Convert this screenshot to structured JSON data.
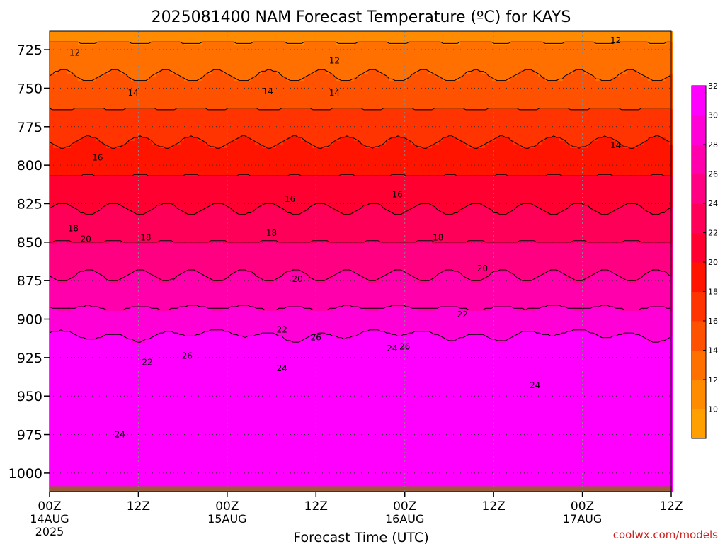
{
  "chart_data": {
    "type": "heatmap",
    "title": "2025081400 NAM Forecast Temperature (ºC) for KAYS",
    "xlabel": "Forecast Time (UTC)",
    "ylabel": "",
    "credit": "coolwx.com/models",
    "y_axis": {
      "scale": "pressure (hPa), inverted",
      "range": [
        1012,
        713
      ],
      "ticks": [
        725,
        750,
        775,
        800,
        825,
        850,
        875,
        900,
        925,
        950,
        975,
        1000
      ],
      "tick_labels": [
        "725",
        "750",
        "775",
        "800",
        "825",
        "850",
        "875",
        "900",
        "925",
        "950",
        "975",
        "1000"
      ]
    },
    "x_axis": {
      "range_hours": [
        0,
        84
      ],
      "ticks_hours": [
        0,
        12,
        24,
        36,
        48,
        60,
        72,
        84
      ],
      "tick_labels": [
        "00Z",
        "12Z",
        "00Z",
        "12Z",
        "00Z",
        "12Z",
        "00Z",
        "12Z"
      ],
      "date_labels": [
        {
          "hour": 0,
          "text": "14AUG"
        },
        {
          "hour": 24,
          "text": "15AUG"
        },
        {
          "hour": 48,
          "text": "16AUG"
        },
        {
          "hour": 72,
          "text": "17AUG"
        }
      ],
      "year_label": "2025"
    },
    "grid": "dotted",
    "ground_color": "#9b5a3c",
    "colorbar": {
      "placement": "right",
      "levels": [
        8,
        10,
        12,
        14,
        16,
        18,
        20,
        22,
        24,
        26,
        28,
        30,
        32,
        34
      ],
      "labels": [
        "10",
        "12",
        "14",
        "16",
        "18",
        "20",
        "22",
        "24",
        "26",
        "28",
        "30",
        "32"
      ],
      "colors": [
        "#ffa000",
        "#ff8c00",
        "#ff7000",
        "#ff5200",
        "#ff3400",
        "#ff1400",
        "#ff0030",
        "#ff0058",
        "#ff0082",
        "#ff00ac",
        "#ff00d6",
        "#ff00ff"
      ]
    },
    "contour_labels": [
      {
        "text": "12",
        "hour": 3.4,
        "p": 727
      },
      {
        "text": "12",
        "hour": 38.5,
        "p": 732
      },
      {
        "text": "12",
        "hour": 76.5,
        "p": 719
      },
      {
        "text": "14",
        "hour": 11.3,
        "p": 753
      },
      {
        "text": "14",
        "hour": 29.5,
        "p": 752
      },
      {
        "text": "14",
        "hour": 38.5,
        "p": 753
      },
      {
        "text": "14",
        "hour": 76.5,
        "p": 787
      },
      {
        "text": "16",
        "hour": 6.5,
        "p": 795
      },
      {
        "text": "16",
        "hour": 32.5,
        "p": 822
      },
      {
        "text": "16",
        "hour": 47.0,
        "p": 819
      },
      {
        "text": "18",
        "hour": 3.2,
        "p": 841
      },
      {
        "text": "18",
        "hour": 13.0,
        "p": 847
      },
      {
        "text": "18",
        "hour": 30.0,
        "p": 844
      },
      {
        "text": "18",
        "hour": 52.5,
        "p": 847
      },
      {
        "text": "20",
        "hour": 4.9,
        "p": 848
      },
      {
        "text": "20",
        "hour": 33.5,
        "p": 874
      },
      {
        "text": "20",
        "hour": 58.5,
        "p": 867
      },
      {
        "text": "22",
        "hour": 13.2,
        "p": 928
      },
      {
        "text": "22",
        "hour": 31.4,
        "p": 907
      },
      {
        "text": "22",
        "hour": 55.8,
        "p": 897
      },
      {
        "text": "24",
        "hour": 9.5,
        "p": 975
      },
      {
        "text": "24",
        "hour": 31.4,
        "p": 932
      },
      {
        "text": "24",
        "hour": 46.3,
        "p": 919
      },
      {
        "text": "24",
        "hour": 65.6,
        "p": 943
      },
      {
        "text": "26",
        "hour": 18.6,
        "p": 924
      },
      {
        "text": "26",
        "hour": 36.0,
        "p": 912
      },
      {
        "text": "26",
        "hour": 48.0,
        "p": 918
      }
    ]
  }
}
